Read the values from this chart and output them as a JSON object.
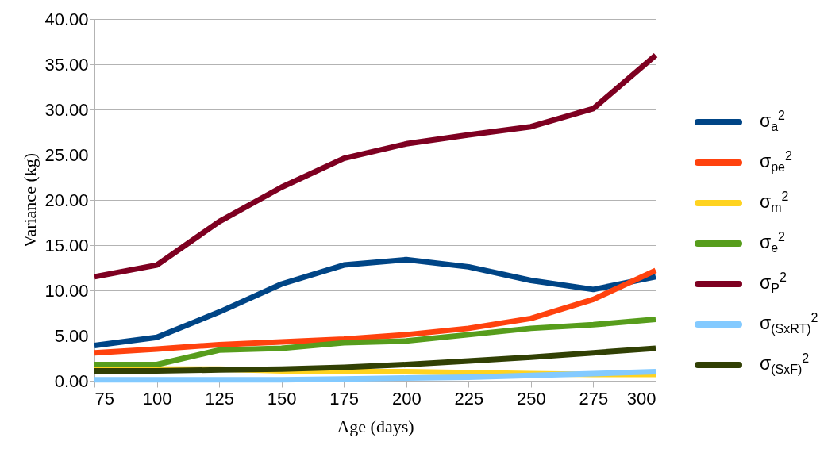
{
  "chart_data": {
    "type": "line",
    "xlabel": "Age (days)",
    "ylabel": "Variance (kg)",
    "x": [
      75,
      100,
      125,
      150,
      175,
      200,
      225,
      250,
      275,
      300
    ],
    "xlim": [
      75,
      300
    ],
    "xticks": [
      75,
      100,
      125,
      150,
      175,
      200,
      225,
      250,
      275,
      300
    ],
    "ylim": [
      0,
      40
    ],
    "yticks": [
      {
        "value": 0,
        "label": "0.00"
      },
      {
        "value": 5,
        "label": "5.00"
      },
      {
        "value": 10,
        "label": "10.00"
      },
      {
        "value": 15,
        "label": "15.00"
      },
      {
        "value": 20,
        "label": "20.00"
      },
      {
        "value": 25,
        "label": "25.00"
      },
      {
        "value": 30,
        "label": "30.00"
      },
      {
        "value": 35,
        "label": "35.00"
      },
      {
        "value": 40,
        "label": "40.00"
      }
    ],
    "grid": "y",
    "legend": "right",
    "marker": "none",
    "line_style": "solid",
    "series": [
      {
        "name": "σ$_{a}$$^{2}$",
        "color": "#004586",
        "values": [
          3.9,
          4.8,
          7.6,
          10.7,
          12.8,
          13.4,
          12.6,
          11.1,
          10.1,
          11.5
        ]
      },
      {
        "name": "σ$_{pe}$$^{2}$",
        "color": "#ff420e",
        "values": [
          3.1,
          3.5,
          4.0,
          4.3,
          4.6,
          5.1,
          5.8,
          6.9,
          9.0,
          12.2
        ]
      },
      {
        "name": "σ$_{m}$$^{2}$",
        "color": "#ffd320",
        "values": [
          1.3,
          1.3,
          1.3,
          1.1,
          1.0,
          1.0,
          0.9,
          0.8,
          0.7,
          0.7
        ]
      },
      {
        "name": "σ$_{e}$$^{2}$",
        "color": "#579d1c",
        "values": [
          1.8,
          1.8,
          3.4,
          3.6,
          4.2,
          4.4,
          5.1,
          5.8,
          6.2,
          6.8
        ]
      },
      {
        "name": "σ$_{P}$$^{2}$",
        "color": "#7e0021",
        "values": [
          11.5,
          12.8,
          17.6,
          21.4,
          24.6,
          26.2,
          27.2,
          28.1,
          30.1,
          36.0
        ]
      },
      {
        "name": "σ$_{(SxRT)}$$^{2}$",
        "color": "#83caff",
        "values": [
          0.1,
          0.1,
          0.1,
          0.1,
          0.2,
          0.3,
          0.4,
          0.6,
          0.8,
          1.0
        ]
      },
      {
        "name": "σ$_{(SxF)}$$^{2}$",
        "color": "#314004",
        "values": [
          1.1,
          1.1,
          1.2,
          1.3,
          1.5,
          1.8,
          2.2,
          2.6,
          3.1,
          3.6
        ]
      }
    ]
  }
}
